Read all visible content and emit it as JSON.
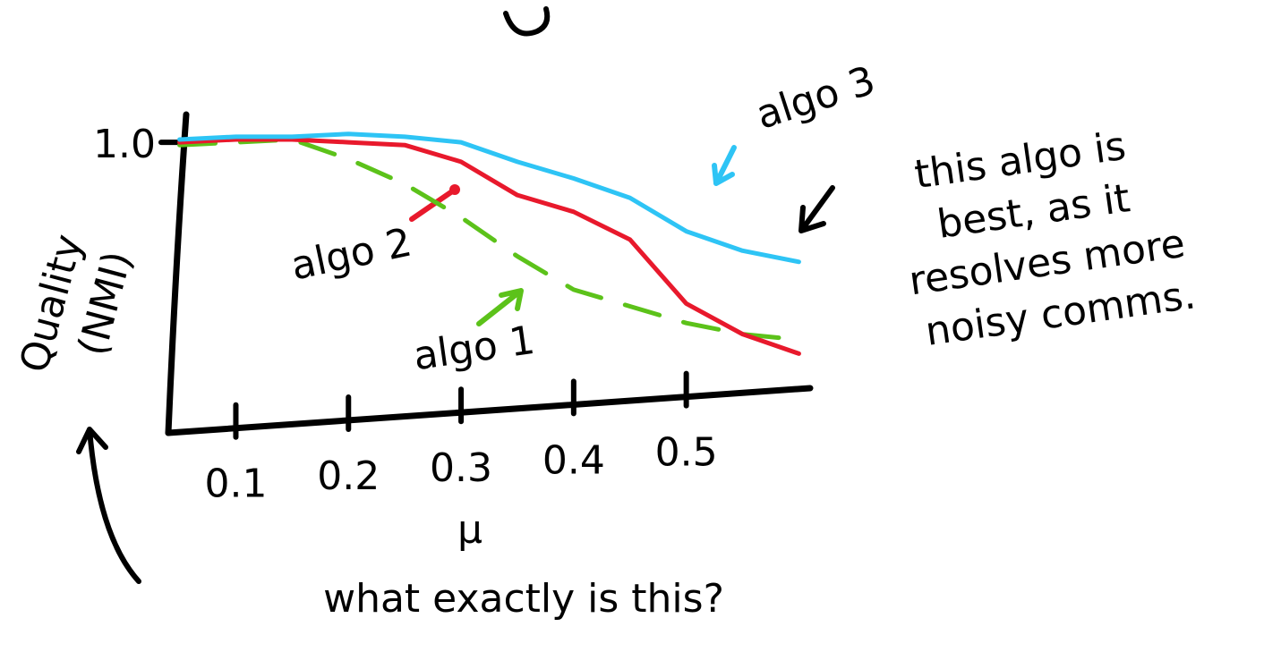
{
  "chart_data": {
    "type": "line",
    "ylabel_lines": [
      "Quality",
      "(NMI)"
    ],
    "xlabel": "μ",
    "x": [
      0.05,
      0.1,
      0.15,
      0.2,
      0.25,
      0.3,
      0.35,
      0.4,
      0.45,
      0.5,
      0.55,
      0.6
    ],
    "xlim": [
      0.04,
      0.61
    ],
    "xticks": [
      0.1,
      0.2,
      0.3,
      0.4,
      0.5
    ],
    "ylim": [
      0,
      1.1
    ],
    "yticks": [
      {
        "value": 1,
        "label": "1.0"
      }
    ],
    "series": [
      {
        "name": "algo 1",
        "color": "#5cc21a",
        "linestyle": "dashed",
        "values": [
          0.99,
          1.0,
          1.01,
          0.94,
          0.85,
          0.73,
          0.59,
          0.47,
          0.41,
          0.35,
          0.31,
          0.29
        ]
      },
      {
        "name": "algo 2",
        "color": "#e8192c",
        "linestyle": "solid",
        "values": [
          1.0,
          1.01,
          1.01,
          1.0,
          0.99,
          0.93,
          0.81,
          0.75,
          0.65,
          0.42,
          0.31,
          0.24
        ]
      },
      {
        "name": "algo 3",
        "color": "#2ec4f5",
        "linestyle": "solid",
        "values": [
          1.01,
          1.02,
          1.02,
          1.03,
          1.02,
          1.0,
          0.93,
          0.87,
          0.8,
          0.68,
          0.61,
          0.57
        ]
      }
    ],
    "note_lines": [
      "this algo is",
      "best, as it",
      "resolves more",
      "noisy comms."
    ],
    "question": "what exactly is this?"
  }
}
